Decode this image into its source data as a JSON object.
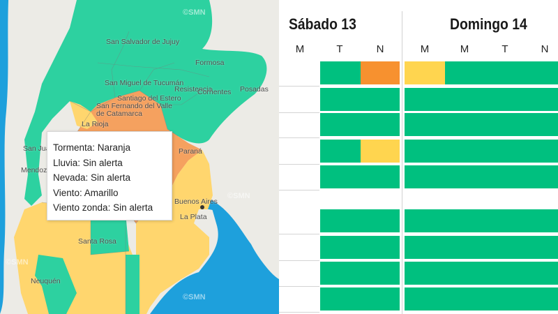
{
  "map": {
    "cities": [
      "San Salvador de Jujuy",
      "Formosa",
      "San Miguel de Tucumán",
      "Resistencia",
      "Corrientes",
      "Posadas",
      "Santiago del Estero",
      "San Fernando del Valle de Catamarca",
      "La Rioja",
      "San Juan",
      "Mendoza",
      "Paraná",
      "Buenos Aires",
      "La Plata",
      "Santa Rosa",
      "Neuquén"
    ],
    "watermark": "©SMN",
    "colors": {
      "green": "#2dd1a0",
      "orange": "#f5a15f",
      "yellow": "#ffd66e",
      "ocean": "#1ea0dc",
      "land": "#ecebe6"
    }
  },
  "tooltip": {
    "lines": [
      "Tormenta: Naranja",
      "Lluvia: Sin alerta",
      "Nevada: Sin alerta",
      "Viento: Amarillo",
      "Viento zonda: Sin alerta"
    ]
  },
  "schedule": {
    "days": [
      "Sábado 13",
      "Domingo 14"
    ],
    "columns": [
      "M",
      "T",
      "N",
      "M",
      "M",
      "T",
      "N"
    ],
    "legend_colors": {
      "green": "#00c07f",
      "orange": "#f7912f",
      "yellow": "#ffd54f"
    },
    "rows": [
      {
        "sat_T": "green",
        "sat_N": "orange",
        "sun_early": "yellow",
        "sun_rest": "green"
      },
      {
        "sat_T": "green",
        "sat_N": "green",
        "sun_early": "green",
        "sun_rest": "green"
      },
      {
        "sat_T": "green",
        "sat_N": "green",
        "sun_early": "green",
        "sun_rest": "green"
      },
      {
        "sat_T": "green",
        "sat_N": "yellow",
        "sun_early": "green",
        "sun_rest": "green"
      },
      {
        "sat_T": "green",
        "sat_N": "green",
        "sun_early": "green",
        "sun_rest": "green"
      },
      {
        "sat_T": "green",
        "sat_N": "green",
        "sun_early": "green",
        "sun_rest": "green"
      },
      {
        "sat_T": "green",
        "sat_N": "green",
        "sun_early": "green",
        "sun_rest": "green"
      },
      {
        "sat_T": "green",
        "sat_N": "green",
        "sun_early": "green",
        "sun_rest": "green"
      },
      {
        "sat_T": "green",
        "sat_N": "green",
        "sun_early": "green",
        "sun_rest": "green"
      }
    ]
  }
}
